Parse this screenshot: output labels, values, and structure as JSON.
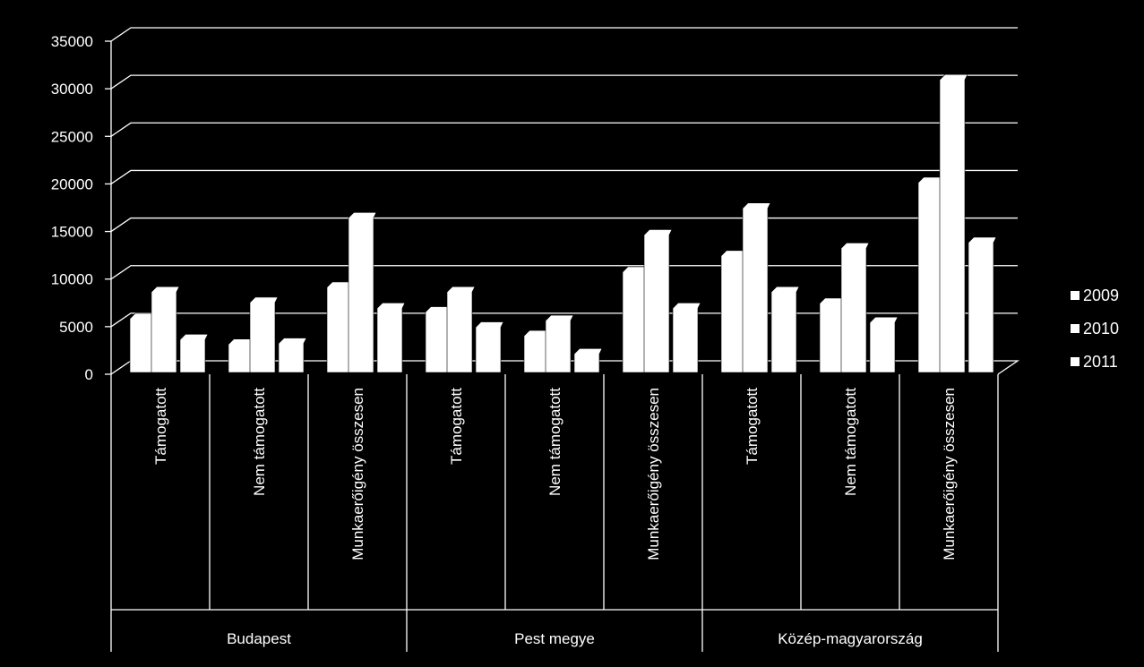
{
  "chart_data": {
    "type": "bar",
    "three_d": true,
    "groups": [
      {
        "label": "Budapest",
        "categories": [
          "Támogatott",
          "Nem támogatott",
          "Munkaerőigény összesen"
        ]
      },
      {
        "label": "Pest megye",
        "categories": [
          "Támogatott",
          "Nem támogatott",
          "Munkaerőigény összesen"
        ]
      },
      {
        "label": "Közép-magyarország",
        "categories": [
          "Támogatott",
          "Nem támogatott",
          "Munkaerőigény összesen"
        ]
      }
    ],
    "series": [
      {
        "name": "2009",
        "values": [
          6400,
          3700,
          9700,
          7100,
          4600,
          11300,
          13000,
          8000,
          20700
        ]
      },
      {
        "name": "2010",
        "values": [
          9200,
          8100,
          17000,
          9200,
          6200,
          15200,
          18000,
          13800,
          31500
        ]
      },
      {
        "name": "2011",
        "values": [
          4200,
          3800,
          7500,
          5500,
          2700,
          7500,
          9200,
          6000,
          14400
        ]
      }
    ],
    "yticks": [
      0,
      5000,
      10000,
      15000,
      20000,
      25000,
      30000,
      35000
    ],
    "ylim": [
      0,
      35000
    ],
    "grid": true,
    "legend_position": "right",
    "bar_color": "#ffffff"
  }
}
